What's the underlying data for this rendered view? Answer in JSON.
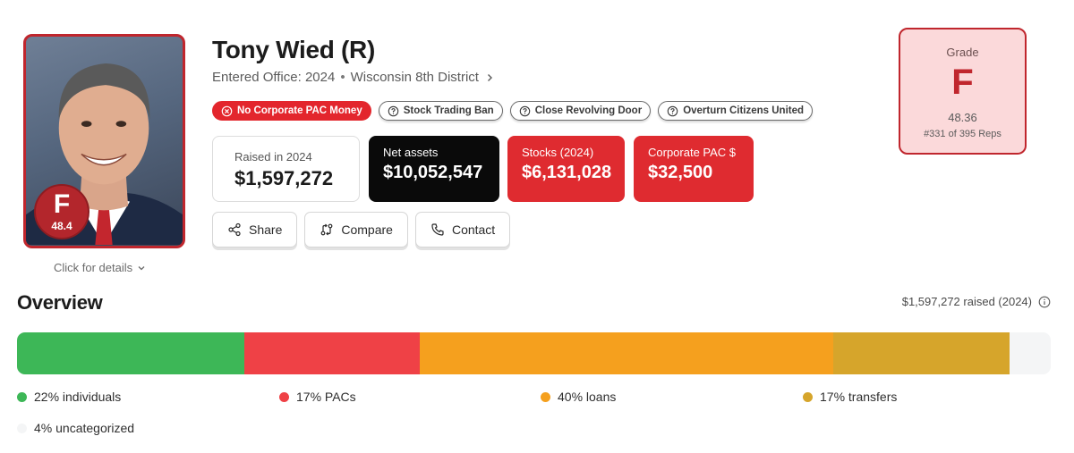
{
  "profile": {
    "name": "Tony Wied (R)",
    "entered_office": "Entered Office: 2024",
    "district": "Wisconsin 8th District",
    "photo_badge": {
      "grade": "F",
      "score": "48.4"
    },
    "details_link": "Click for details"
  },
  "pills": [
    {
      "label": "No Corporate PAC Money",
      "style": "red",
      "icon": "x-circle-icon"
    },
    {
      "label": "Stock Trading Ban",
      "style": "outline",
      "icon": "question-circle-icon"
    },
    {
      "label": "Close Revolving Door",
      "style": "outline",
      "icon": "question-circle-icon"
    },
    {
      "label": "Overturn Citizens United",
      "style": "outline",
      "icon": "question-circle-icon"
    }
  ],
  "stats": {
    "raised": {
      "label": "Raised in 2024",
      "value": "$1,597,272"
    },
    "net_assets": {
      "label": "Net assets",
      "value": "$10,052,547"
    },
    "stocks": {
      "label": "Stocks (2024)",
      "value": "$6,131,028"
    },
    "corporate_pac": {
      "label": "Corporate PAC $",
      "value": "$32,500"
    }
  },
  "actions": {
    "share": "Share",
    "compare": "Compare",
    "contact": "Contact"
  },
  "grade_box": {
    "label": "Grade",
    "letter": "F",
    "score": "48.36",
    "rank": "#331 of 395 Reps"
  },
  "overview": {
    "title": "Overview",
    "raised_text": "$1,597,272 raised (2024)",
    "segments": [
      {
        "label": "22% individuals",
        "percent": 22,
        "color": "#3db757"
      },
      {
        "label": "17% PACs",
        "percent": 17,
        "color": "#ef4146"
      },
      {
        "label": "40% loans",
        "percent": 40,
        "color": "#f5a01e"
      },
      {
        "label": "17% transfers",
        "percent": 17,
        "color": "#d6a52b"
      },
      {
        "label": "4% uncategorized",
        "percent": 4,
        "color": "#f4f5f6"
      }
    ]
  },
  "colors": {
    "accent_red": "#df2b30",
    "grade_border": "#c0262d",
    "grade_bg": "#fbd9da"
  }
}
